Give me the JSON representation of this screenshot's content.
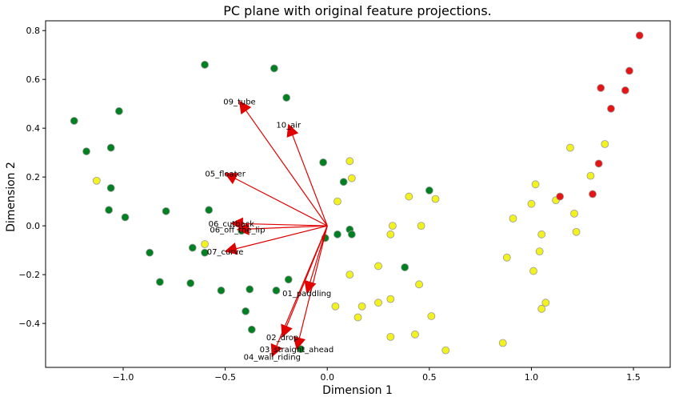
{
  "chart_data": {
    "type": "scatter",
    "title": "PC plane with original feature projections.",
    "xlabel": "Dimension 1",
    "ylabel": "Dimension 2",
    "xlim": [
      -1.38,
      1.68
    ],
    "ylim": [
      -0.58,
      0.84
    ],
    "grid": false,
    "x_ticks": [
      -1.0,
      -0.5,
      0.0,
      0.5,
      1.0,
      1.5
    ],
    "x_tick_labels": [
      "−1.0",
      "−0.5",
      "0.0",
      "0.5",
      "1.0",
      "1.5"
    ],
    "y_ticks": [
      -0.4,
      -0.2,
      0.0,
      0.2,
      0.4,
      0.6,
      0.8
    ],
    "y_tick_labels": [
      "−0.4",
      "−0.2",
      "0.0",
      "0.2",
      "0.4",
      "0.6",
      "0.8"
    ],
    "series": [
      {
        "color": "#008020",
        "points": [
          [
            -1.24,
            0.43
          ],
          [
            -1.18,
            0.305
          ],
          [
            -1.06,
            0.32
          ],
          [
            -1.02,
            0.47
          ],
          [
            -1.07,
            0.065
          ],
          [
            -1.06,
            0.155
          ],
          [
            -0.99,
            0.035
          ],
          [
            -0.79,
            0.06
          ],
          [
            -0.87,
            -0.11
          ],
          [
            -0.82,
            -0.23
          ],
          [
            -0.66,
            -0.09
          ],
          [
            -0.67,
            -0.235
          ],
          [
            -0.58,
            0.065
          ],
          [
            -0.6,
            -0.11
          ],
          [
            -0.52,
            -0.265
          ],
          [
            -0.6,
            0.66
          ],
          [
            -0.26,
            0.645
          ],
          [
            -0.2,
            0.525
          ],
          [
            -0.42,
            -0.02
          ],
          [
            -0.38,
            -0.26
          ],
          [
            -0.4,
            -0.35
          ],
          [
            -0.37,
            -0.425
          ],
          [
            -0.25,
            -0.265
          ],
          [
            -0.19,
            -0.22
          ],
          [
            -0.13,
            -0.505
          ],
          [
            -0.02,
            0.26
          ],
          [
            0.08,
            0.18
          ],
          [
            0.05,
            -0.035
          ],
          [
            0.11,
            -0.015
          ],
          [
            0.12,
            -0.035
          ],
          [
            -0.01,
            -0.05
          ],
          [
            0.38,
            -0.17
          ],
          [
            0.5,
            0.145
          ]
        ]
      },
      {
        "color": "#f2f21e",
        "points": [
          [
            -1.13,
            0.185
          ],
          [
            -0.6,
            -0.075
          ],
          [
            0.05,
            0.1
          ],
          [
            0.11,
            0.265
          ],
          [
            0.12,
            0.195
          ],
          [
            0.11,
            -0.2
          ],
          [
            0.04,
            -0.33
          ],
          [
            0.15,
            -0.375
          ],
          [
            0.17,
            -0.33
          ],
          [
            0.25,
            -0.165
          ],
          [
            0.31,
            -0.035
          ],
          [
            0.32,
            0.0
          ],
          [
            0.31,
            -0.3
          ],
          [
            0.25,
            -0.315
          ],
          [
            0.31,
            -0.455
          ],
          [
            0.4,
            0.12
          ],
          [
            0.46,
            0.0
          ],
          [
            0.45,
            -0.24
          ],
          [
            0.43,
            -0.445
          ],
          [
            0.51,
            -0.37
          ],
          [
            0.53,
            0.11
          ],
          [
            0.58,
            -0.51
          ],
          [
            0.86,
            -0.48
          ],
          [
            0.88,
            -0.13
          ],
          [
            0.91,
            0.03
          ],
          [
            1.0,
            0.09
          ],
          [
            1.02,
            0.17
          ],
          [
            1.01,
            -0.185
          ],
          [
            1.04,
            -0.105
          ],
          [
            1.05,
            -0.34
          ],
          [
            1.07,
            -0.315
          ],
          [
            1.05,
            -0.035
          ],
          [
            1.12,
            0.105
          ],
          [
            1.19,
            0.32
          ],
          [
            1.21,
            0.05
          ],
          [
            1.22,
            -0.025
          ],
          [
            1.29,
            0.205
          ],
          [
            1.36,
            0.335
          ]
        ]
      },
      {
        "color": "#e61414",
        "points": [
          [
            1.14,
            0.12
          ],
          [
            1.3,
            0.13
          ],
          [
            1.33,
            0.255
          ],
          [
            1.34,
            0.565
          ],
          [
            1.39,
            0.48
          ],
          [
            1.46,
            0.555
          ],
          [
            1.48,
            0.635
          ],
          [
            1.53,
            0.78
          ]
        ]
      }
    ],
    "vectors": {
      "origin": [
        0.0,
        0.0
      ],
      "color": "#e00000",
      "items": [
        {
          "label": "01_paddling",
          "x": -0.1,
          "y": -0.275
        },
        {
          "label": "02_drop",
          "x": -0.22,
          "y": -0.455
        },
        {
          "label": "03_straight_ahead",
          "x": -0.15,
          "y": -0.505
        },
        {
          "label": "04_wall_riding",
          "x": -0.27,
          "y": -0.535
        },
        {
          "label": "05_floater",
          "x": -0.5,
          "y": 0.215
        },
        {
          "label": "06_cutback",
          "x": -0.47,
          "y": 0.01
        },
        {
          "label": "06_off_the_lip",
          "x": -0.44,
          "y": -0.015
        },
        {
          "label": "07_curve",
          "x": -0.5,
          "y": -0.105
        },
        {
          "label": "09_tube",
          "x": -0.43,
          "y": 0.51
        },
        {
          "label": "10_air",
          "x": -0.19,
          "y": 0.415
        }
      ]
    }
  }
}
